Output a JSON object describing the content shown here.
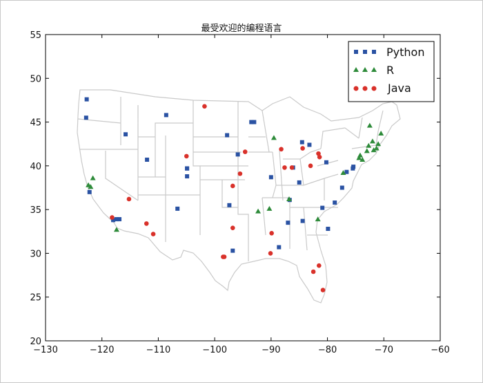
{
  "chart_data": {
    "type": "scatter",
    "title": "最受欢迎的编程语言",
    "xlabel": "",
    "ylabel": "",
    "xlim": [
      -130,
      -60
    ],
    "ylim": [
      20,
      55
    ],
    "xticks": [
      "−130",
      "−120",
      "−110",
      "−100",
      "−90",
      "−80",
      "−70",
      "−60"
    ],
    "yticks": [
      "20",
      "25",
      "30",
      "35",
      "40",
      "45",
      "50",
      "55"
    ],
    "legend_position": "top-right",
    "series": [
      {
        "name": "Python",
        "marker": "square",
        "color": "#2a52a3",
        "x": [
          -122.7,
          -122.8,
          -122.2,
          -115.8,
          -108.6,
          -112.0,
          -104.9,
          -104.9,
          -104.9,
          -106.6,
          -117.4,
          -116.9,
          -118.0,
          -97.4,
          -96.8,
          -97.8,
          -95.9,
          -93.5,
          -93.0,
          -90.0,
          -88.6,
          -86.7,
          -84.5,
          -83.2,
          -86.1,
          -85.0,
          -84.4,
          -80.2,
          -80.9,
          -78.7,
          -77.4,
          -76.6,
          -75.5,
          -75.4,
          -79.9,
          -87.0
        ],
        "y": [
          47.6,
          45.5,
          37.0,
          43.6,
          45.8,
          40.7,
          39.7,
          39.7,
          38.8,
          35.1,
          33.9,
          33.9,
          33.8,
          35.5,
          30.3,
          43.5,
          41.3,
          45.0,
          45.0,
          38.7,
          30.7,
          36.1,
          42.7,
          42.4,
          39.8,
          38.1,
          33.7,
          40.4,
          35.2,
          35.8,
          37.5,
          39.3,
          39.7,
          39.9,
          32.8,
          33.5
        ]
      },
      {
        "name": "R",
        "marker": "triangle",
        "color": "#2e8b3a",
        "x": [
          -122.4,
          -122.0,
          -121.6,
          -117.4,
          -92.3,
          -90.3,
          -89.5,
          -86.8,
          -81.7,
          -77.2,
          -74.4,
          -73.8,
          -72.5,
          -72.7,
          -71.3,
          -71.8,
          -71.0,
          -72.0,
          -73.0,
          -70.5,
          -74.2
        ],
        "y": [
          37.8,
          37.6,
          38.6,
          32.7,
          34.8,
          35.1,
          43.2,
          36.2,
          33.9,
          39.2,
          40.9,
          40.7,
          44.6,
          42.3,
          42.0,
          41.8,
          42.5,
          42.8,
          41.7,
          43.7,
          41.2
        ]
      },
      {
        "name": "Java",
        "marker": "circle",
        "color": "#d9312a",
        "x": [
          -115.2,
          -118.2,
          -112.1,
          -110.9,
          -105.0,
          -101.8,
          -96.8,
          -95.5,
          -96.8,
          -98.5,
          -98.3,
          -94.6,
          -89.9,
          -87.6,
          -86.3,
          -84.4,
          -81.6,
          -83.0,
          -81.5,
          -80.8,
          -82.5,
          -81.4,
          -90.1,
          -88.2
        ],
        "y": [
          36.2,
          34.1,
          33.4,
          32.2,
          41.1,
          46.8,
          37.7,
          39.1,
          32.9,
          29.6,
          29.6,
          41.6,
          32.3,
          39.8,
          39.8,
          42.0,
          41.4,
          40.0,
          28.6,
          25.8,
          27.9,
          41.0,
          30.0,
          41.9
        ]
      }
    ]
  }
}
